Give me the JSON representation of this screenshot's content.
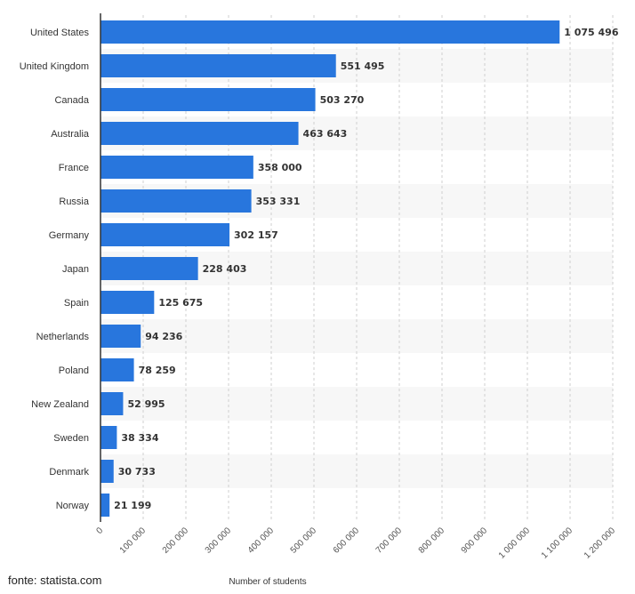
{
  "chart_data": {
    "type": "bar",
    "orientation": "horizontal",
    "categories": [
      "United States",
      "United Kingdom",
      "Canada",
      "Australia",
      "France",
      "Russia",
      "Germany",
      "Japan",
      "Spain",
      "Netherlands",
      "Poland",
      "New Zealand",
      "Sweden",
      "Denmark",
      "Norway"
    ],
    "values": [
      1075496,
      551495,
      503270,
      463643,
      358000,
      353331,
      302157,
      228403,
      125675,
      94236,
      78259,
      52995,
      38334,
      30733,
      21199
    ],
    "value_labels": [
      "1 075 496",
      "551 495",
      "503 270",
      "463 643",
      "358 000",
      "353 331",
      "302 157",
      "228 403",
      "125 675",
      "94 236",
      "78 259",
      "52 995",
      "38 334",
      "30 733",
      "21 199"
    ],
    "xlabel": "Number of students",
    "ylabel": "",
    "xlim": [
      0,
      1200000
    ],
    "ticks": [
      0,
      100000,
      200000,
      300000,
      400000,
      500000,
      600000,
      700000,
      800000,
      900000,
      1000000,
      1100000,
      1200000
    ],
    "tick_labels": [
      "0",
      "100 000",
      "200 000",
      "300 000",
      "400 000",
      "500 000",
      "600 000",
      "700 000",
      "800 000",
      "900 000",
      "1 000 000",
      "1 100 000",
      "1 200 000"
    ],
    "grid": true,
    "colors": {
      "bar": "#2876dd",
      "band": "#f7f7f7",
      "grid": "#cfcfcf",
      "axis": "#333333"
    }
  },
  "source": "fonte: statista.com"
}
